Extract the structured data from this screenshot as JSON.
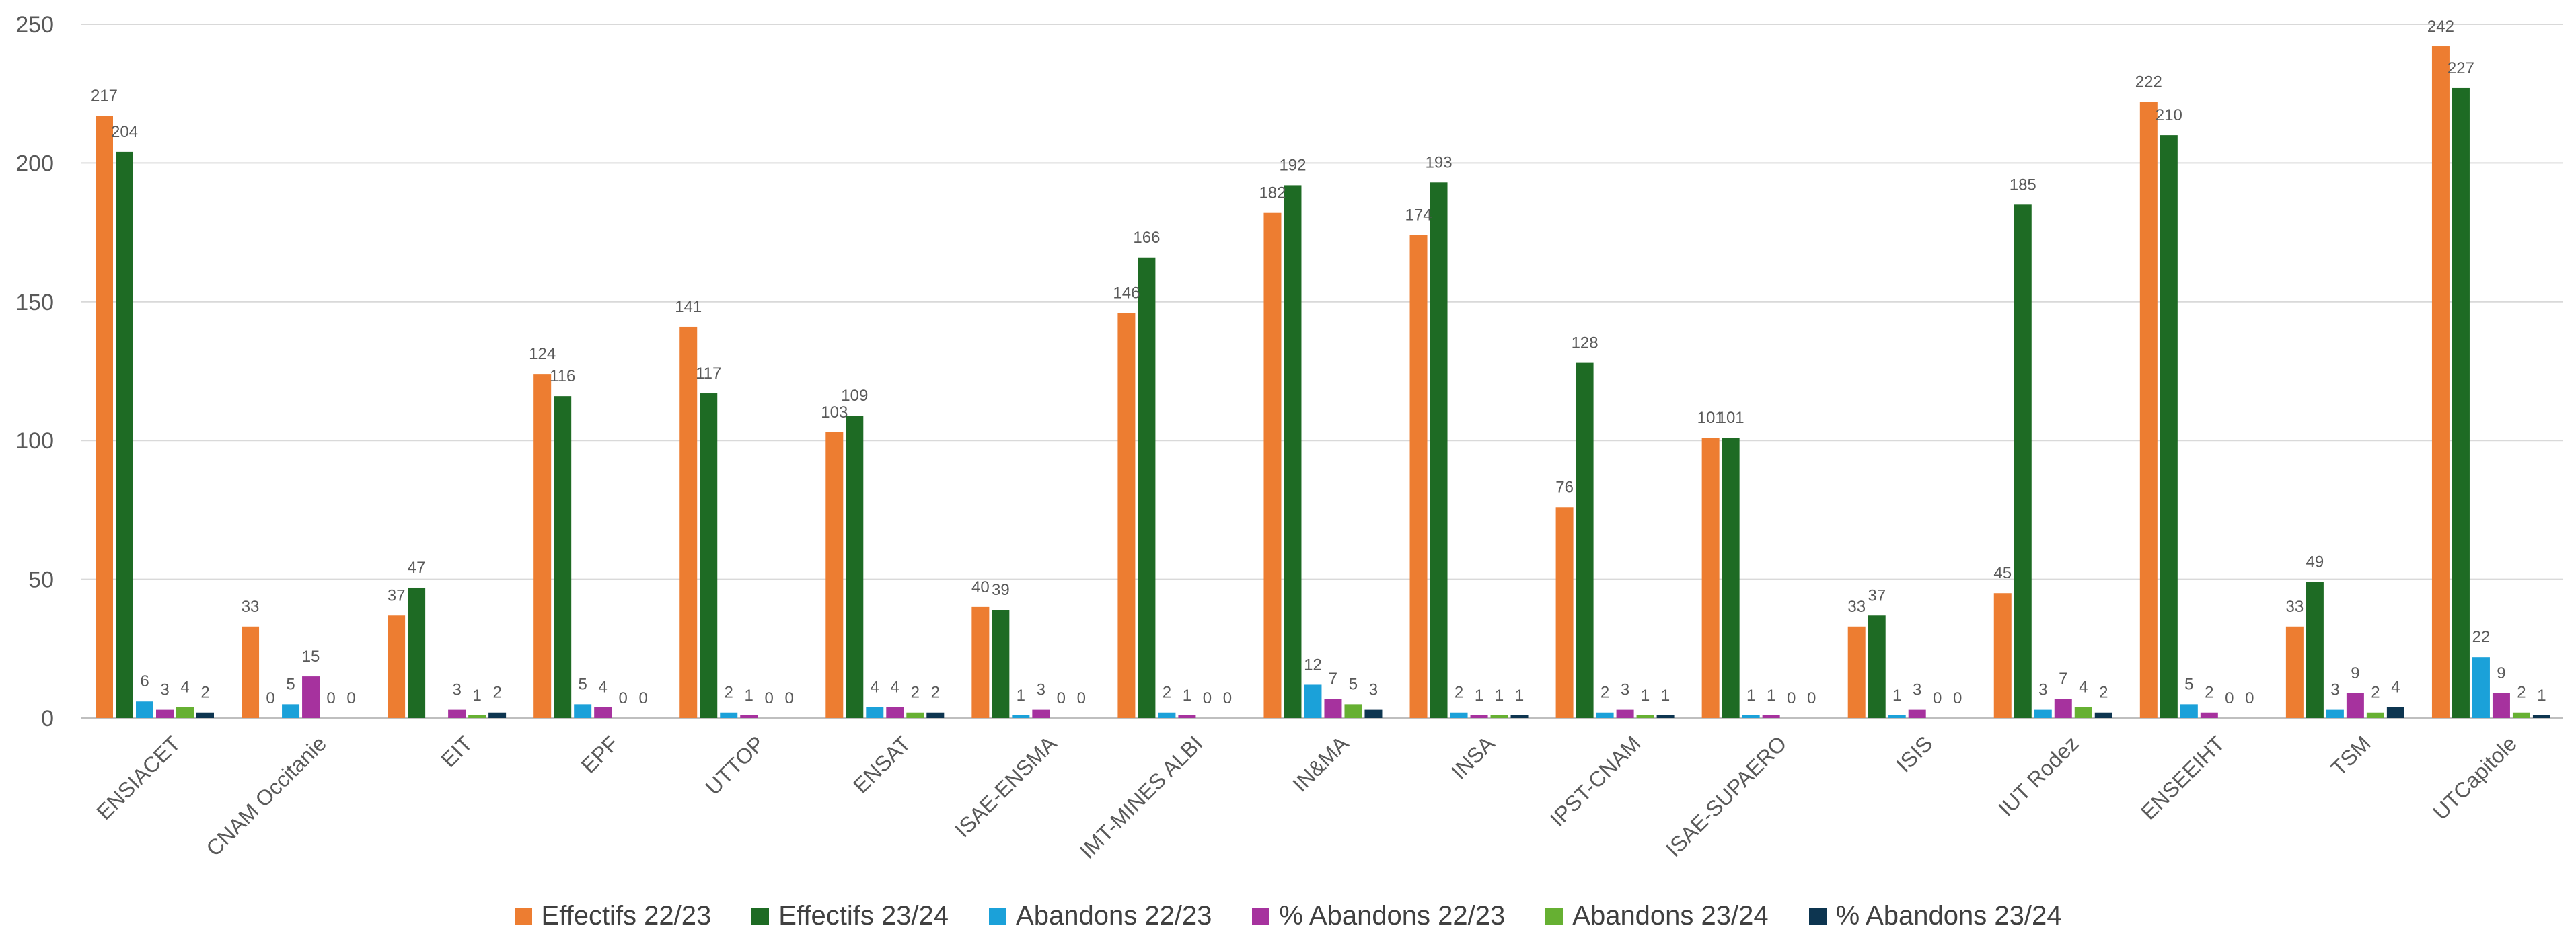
{
  "chart_data": {
    "type": "bar",
    "title": "",
    "xlabel": "",
    "ylabel": "",
    "ylim": [
      0,
      250
    ],
    "yticks": [
      0,
      50,
      100,
      150,
      200,
      250
    ],
    "grid": true,
    "legend_position": "bottom",
    "categories": [
      "ENSIACET",
      "CNAM Occitanie",
      "EIT",
      "EPF",
      "UTTOP",
      "ENSAT",
      "ISAE-ENSMA",
      "IMT-MINES ALBI",
      "IN&MA",
      "INSA",
      "IPST-CNAM",
      "ISAE-SUPAERO",
      "ISIS",
      "IUT Rodez",
      "ENSEEIHT",
      "TSM",
      "UTCapitole"
    ],
    "series": [
      {
        "name": "Effectifs 22/23",
        "color": "#ED7D31",
        "values": [
          217,
          33,
          37,
          124,
          141,
          103,
          40,
          146,
          182,
          174,
          76,
          101,
          33,
          45,
          222,
          33,
          242
        ]
      },
      {
        "name": "Effectifs 23/24",
        "color": "#1E6B24",
        "values": [
          204,
          null,
          47,
          116,
          117,
          109,
          39,
          166,
          192,
          193,
          128,
          101,
          37,
          185,
          210,
          49,
          227
        ]
      },
      {
        "name": "Abandons 22/23",
        "color": "#1BA1D9",
        "values": [
          6,
          5,
          null,
          5,
          2,
          4,
          1,
          2,
          12,
          2,
          2,
          1,
          1,
          3,
          5,
          3,
          22
        ]
      },
      {
        "name": "% Abandons 22/23",
        "color": "#A6329E",
        "values": [
          3,
          15,
          3,
          4,
          1,
          4,
          3,
          1,
          7,
          1,
          3,
          1,
          3,
          7,
          2,
          9,
          9
        ]
      },
      {
        "name": "Abandons 23/24",
        "color": "#66B032",
        "values": [
          4,
          0,
          1,
          0,
          0,
          2,
          0,
          0,
          5,
          1,
          1,
          0,
          0,
          4,
          0,
          2,
          2
        ]
      },
      {
        "name": "% Abandons 23/24",
        "color": "#0D3550",
        "values": [
          2,
          0,
          2,
          0,
          0,
          2,
          0,
          0,
          3,
          1,
          1,
          0,
          0,
          2,
          0,
          4,
          1
        ]
      }
    ],
    "extra_labels": [
      {
        "category": "CNAM Occitanie",
        "text": "0"
      }
    ]
  }
}
